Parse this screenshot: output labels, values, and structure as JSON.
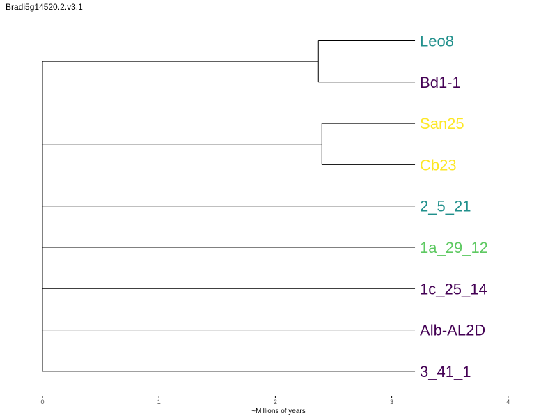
{
  "title": "Bradi5g14520.2.v3.1",
  "chart_data": {
    "type": "dendrogram",
    "xlabel": "~Millions of years",
    "xlim": [
      -0.3,
      4.4
    ],
    "xticks": [
      0,
      1,
      2,
      3,
      4
    ],
    "tip_x": 3.2,
    "tips": [
      {
        "name": "Leo8",
        "color": "#21908c"
      },
      {
        "name": "Bd1-1",
        "color": "#440154"
      },
      {
        "name": "San25",
        "color": "#fde725"
      },
      {
        "name": "Cb23",
        "color": "#fde725"
      },
      {
        "name": "2_5_21",
        "color": "#21908c"
      },
      {
        "name": "1a_29_12",
        "color": "#5ec962"
      },
      {
        "name": "1c_25_14",
        "color": "#440154"
      },
      {
        "name": "Alb-AL2D",
        "color": "#440154"
      },
      {
        "name": "3_41_1",
        "color": "#440154"
      }
    ],
    "clades": [
      {
        "tips": [
          0,
          1
        ],
        "node_x": 2.37
      },
      {
        "tips": [
          2,
          3
        ],
        "node_x": 2.4
      }
    ],
    "root_x": 0.0
  }
}
